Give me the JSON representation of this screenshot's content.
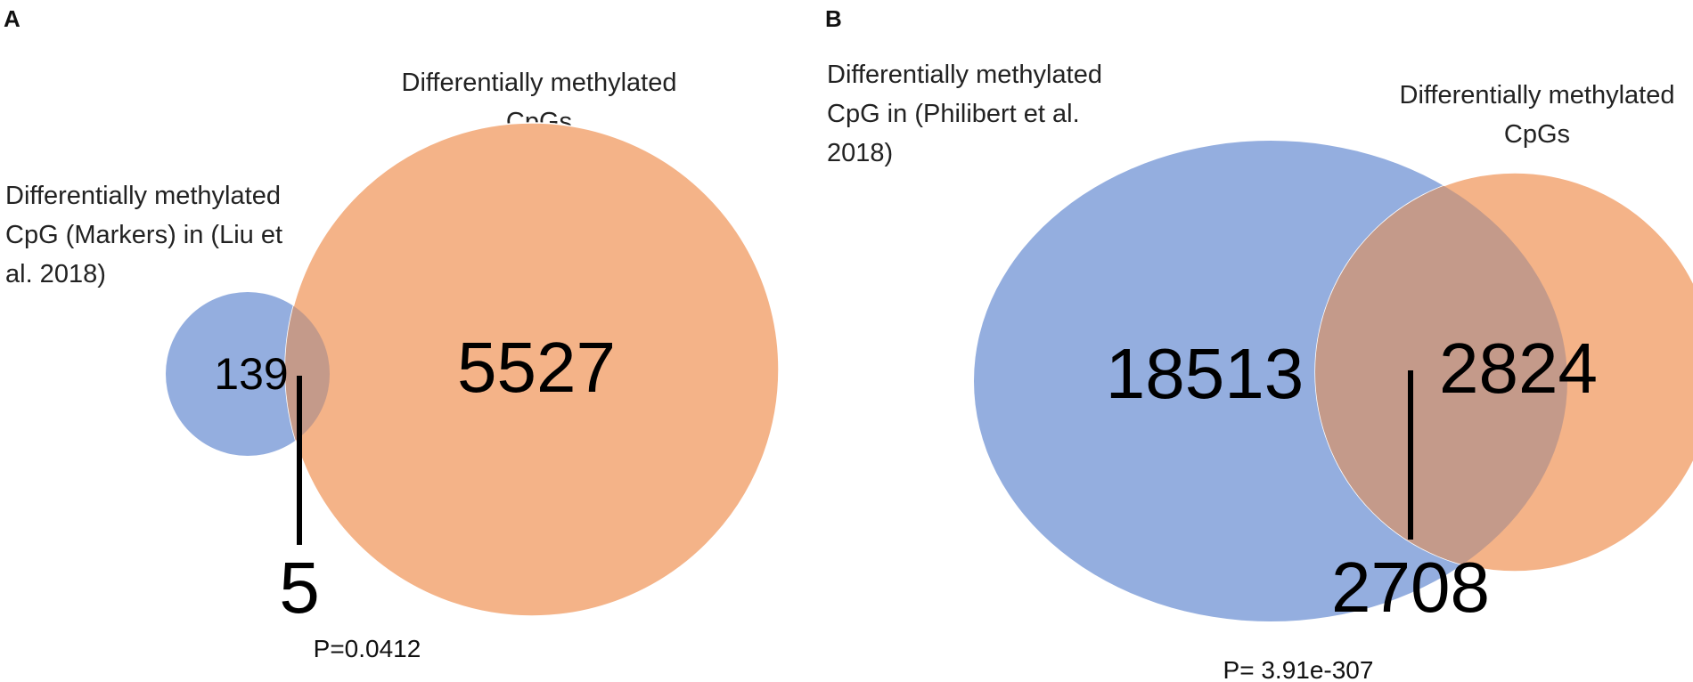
{
  "panels": [
    {
      "letter": "A",
      "left_set": {
        "label_lines": [
          "Differentially methylated",
          "CpG (Markers) in (Liu et",
          "al. 2018)"
        ],
        "count": "139",
        "color": "#94AEDF"
      },
      "right_set": {
        "label_lines": [
          "Differentially methylated",
          "CpGs"
        ],
        "count": "5527",
        "color": "#F4B388"
      },
      "overlap": {
        "count": "5",
        "color": "#C49A8A"
      },
      "p_value": "P=0.0412"
    },
    {
      "letter": "B",
      "left_set": {
        "label_lines": [
          "Differentially methylated",
          "CpG in (Philibert et al.",
          "2018)"
        ],
        "count": "18513",
        "color": "#94AEDF"
      },
      "right_set": {
        "label_lines": [
          "Differentially methylated",
          "CpGs"
        ],
        "count": "2824",
        "color": "#F4B388"
      },
      "overlap": {
        "count": "2708",
        "color": "#C49A8A"
      },
      "p_value": "P= 3.91e-307"
    }
  ]
}
